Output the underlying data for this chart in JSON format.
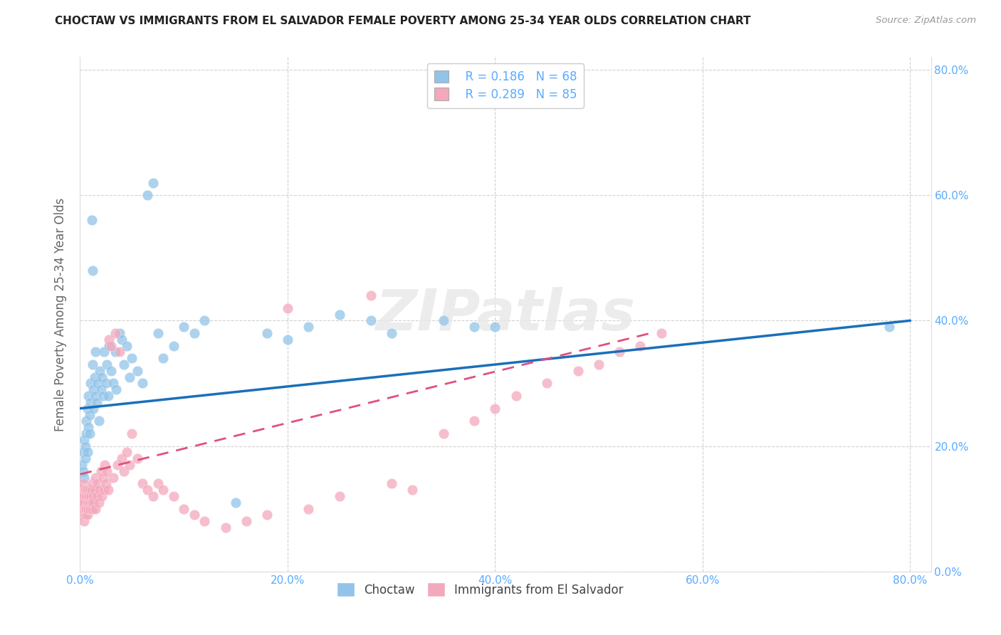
{
  "title": "CHOCTAW VS IMMIGRANTS FROM EL SALVADOR FEMALE POVERTY AMONG 25-34 YEAR OLDS CORRELATION CHART",
  "source": "Source: ZipAtlas.com",
  "ylabel": "Female Poverty Among 25-34 Year Olds",
  "legend_labels": [
    "Choctaw",
    "Immigrants from El Salvador"
  ],
  "legend_r1": "R = 0.186",
  "legend_n1": "N = 68",
  "legend_r2": "R = 0.289",
  "legend_n2": "N = 85",
  "color_blue": "#91c4e8",
  "color_pink": "#f4a8bc",
  "line_blue": "#1a6fba",
  "line_pink": "#e05080",
  "watermark": "ZIPatlas",
  "tick_color": "#5aabff",
  "choctaw_x": [
    0.002,
    0.003,
    0.003,
    0.004,
    0.004,
    0.005,
    0.005,
    0.006,
    0.006,
    0.007,
    0.007,
    0.008,
    0.008,
    0.009,
    0.009,
    0.01,
    0.01,
    0.011,
    0.012,
    0.012,
    0.013,
    0.013,
    0.014,
    0.015,
    0.015,
    0.016,
    0.017,
    0.018,
    0.019,
    0.02,
    0.021,
    0.022,
    0.023,
    0.025,
    0.026,
    0.027,
    0.028,
    0.03,
    0.032,
    0.034,
    0.035,
    0.038,
    0.04,
    0.042,
    0.045,
    0.048,
    0.05,
    0.055,
    0.06,
    0.065,
    0.07,
    0.075,
    0.08,
    0.09,
    0.1,
    0.11,
    0.12,
    0.15,
    0.18,
    0.2,
    0.22,
    0.25,
    0.28,
    0.3,
    0.35,
    0.38,
    0.4,
    0.78
  ],
  "choctaw_y": [
    0.17,
    0.16,
    0.19,
    0.15,
    0.21,
    0.18,
    0.2,
    0.22,
    0.24,
    0.19,
    0.26,
    0.23,
    0.28,
    0.22,
    0.25,
    0.3,
    0.27,
    0.56,
    0.33,
    0.48,
    0.29,
    0.26,
    0.31,
    0.35,
    0.28,
    0.27,
    0.3,
    0.24,
    0.32,
    0.29,
    0.31,
    0.28,
    0.35,
    0.3,
    0.33,
    0.28,
    0.36,
    0.32,
    0.3,
    0.35,
    0.29,
    0.38,
    0.37,
    0.33,
    0.36,
    0.31,
    0.34,
    0.32,
    0.3,
    0.6,
    0.62,
    0.38,
    0.34,
    0.36,
    0.39,
    0.38,
    0.4,
    0.11,
    0.38,
    0.37,
    0.39,
    0.41,
    0.4,
    0.38,
    0.4,
    0.39,
    0.39,
    0.39
  ],
  "salvador_x": [
    0.001,
    0.001,
    0.002,
    0.002,
    0.003,
    0.003,
    0.003,
    0.004,
    0.004,
    0.004,
    0.005,
    0.005,
    0.005,
    0.006,
    0.006,
    0.007,
    0.007,
    0.007,
    0.008,
    0.008,
    0.009,
    0.009,
    0.01,
    0.01,
    0.011,
    0.011,
    0.012,
    0.012,
    0.013,
    0.013,
    0.014,
    0.015,
    0.015,
    0.016,
    0.017,
    0.018,
    0.019,
    0.02,
    0.021,
    0.022,
    0.023,
    0.024,
    0.025,
    0.026,
    0.027,
    0.028,
    0.03,
    0.032,
    0.034,
    0.036,
    0.038,
    0.04,
    0.042,
    0.045,
    0.048,
    0.05,
    0.055,
    0.06,
    0.065,
    0.07,
    0.075,
    0.08,
    0.09,
    0.1,
    0.11,
    0.12,
    0.14,
    0.16,
    0.18,
    0.2,
    0.22,
    0.25,
    0.28,
    0.3,
    0.32,
    0.35,
    0.38,
    0.4,
    0.42,
    0.45,
    0.48,
    0.5,
    0.52,
    0.54,
    0.56
  ],
  "salvador_y": [
    0.13,
    0.1,
    0.12,
    0.09,
    0.11,
    0.14,
    0.1,
    0.12,
    0.08,
    0.11,
    0.13,
    0.09,
    0.1,
    0.12,
    0.1,
    0.11,
    0.13,
    0.09,
    0.1,
    0.12,
    0.11,
    0.13,
    0.1,
    0.12,
    0.11,
    0.13,
    0.1,
    0.14,
    0.12,
    0.11,
    0.13,
    0.1,
    0.15,
    0.12,
    0.14,
    0.11,
    0.13,
    0.16,
    0.12,
    0.15,
    0.13,
    0.17,
    0.14,
    0.16,
    0.13,
    0.37,
    0.36,
    0.15,
    0.38,
    0.17,
    0.35,
    0.18,
    0.16,
    0.19,
    0.17,
    0.22,
    0.18,
    0.14,
    0.13,
    0.12,
    0.14,
    0.13,
    0.12,
    0.1,
    0.09,
    0.08,
    0.07,
    0.08,
    0.09,
    0.42,
    0.1,
    0.12,
    0.44,
    0.14,
    0.13,
    0.22,
    0.24,
    0.26,
    0.28,
    0.3,
    0.32,
    0.33,
    0.35,
    0.36,
    0.38
  ],
  "xlim": [
    0,
    0.82
  ],
  "ylim": [
    0,
    0.82
  ],
  "xtick_vals": [
    0.0,
    0.2,
    0.4,
    0.6,
    0.8
  ],
  "ytick_vals": [
    0.0,
    0.2,
    0.4,
    0.6,
    0.8
  ]
}
